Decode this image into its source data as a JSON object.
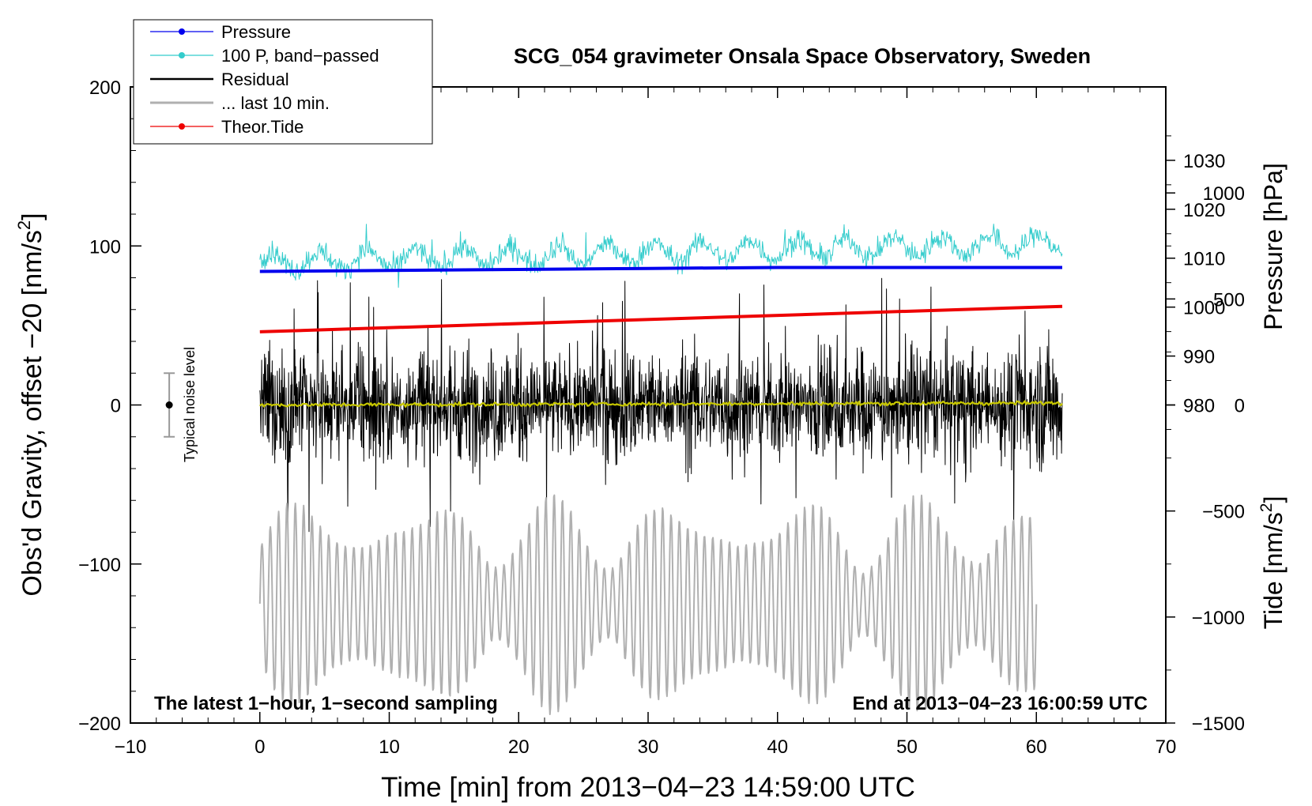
{
  "chart_data": {
    "type": "line",
    "title": "SCG_054 gravimeter Onsala Space Observatory, Sweden",
    "xlabel": "Time [min] from 2013−04−23 14:59:00 UTC",
    "ylabel_left_main": "Obs'd Gravity, offset −20 [nm/s",
    "ylabel_left_sup": "2",
    "ylabel_left_close": "]",
    "ylabel_right_pressure": "Pressure [hPa]",
    "ylabel_right_tide_main": "Tide [nm/s",
    "ylabel_right_tide_sup": "2",
    "ylabel_right_tide_close": "]",
    "xlim": [
      -10,
      70
    ],
    "ylim_left": [
      -200,
      200
    ],
    "x_ticks": [
      -10,
      0,
      10,
      20,
      30,
      40,
      50,
      60,
      70
    ],
    "x_tick_labels": [
      "−10",
      "0",
      "10",
      "20",
      "30",
      "40",
      "50",
      "60",
      "70"
    ],
    "y_left_ticks": [
      -200,
      -100,
      0,
      100,
      200
    ],
    "y_left_tick_labels": [
      "−200",
      "−100",
      "0",
      "100",
      "200"
    ],
    "y_right_pressure_ticks": [
      980,
      990,
      1000,
      1010,
      1020,
      1030
    ],
    "y_right_pressure_range": [
      915,
      1045
    ],
    "y_right_tide_ticks": [
      -1500,
      -1000,
      -500,
      0,
      500,
      1000
    ],
    "y_right_tide_tick_labels": [
      "−1500",
      "−1000",
      "−500",
      "0",
      "500",
      "1000"
    ],
    "y_right_tide_range": [
      -1500,
      1500
    ],
    "grid": false,
    "legend_position": "top-left",
    "legend": [
      {
        "label": "Pressure",
        "color": "#0000ee",
        "marker": true
      },
      {
        "label": "100 P, band−passed",
        "color": "#33cccc",
        "marker": true
      },
      {
        "label": "Residual",
        "color": "#000000",
        "marker": false
      },
      {
        "label": "... last 10 min.",
        "color": "#b0b0b0",
        "marker": false
      },
      {
        "label": "Theor.Tide",
        "color": "#ee0000",
        "marker": true
      }
    ],
    "annotation_left": "The latest 1−hour, 1−second sampling",
    "annotation_right": "End at 2013−04−23 16:00:59 UTC",
    "noise_label": "Typical noise level",
    "noise_bar": {
      "x": -7,
      "center": 0,
      "half_range": 20
    },
    "series": [
      {
        "name": "Pressure",
        "color": "#0000ee",
        "axis": "pressure",
        "x": [
          0,
          10,
          20,
          30,
          40,
          50,
          62
        ],
        "y": [
          1007.3,
          1007.5,
          1007.7,
          1007.9,
          1008.1,
          1008.1,
          1008.1
        ]
      },
      {
        "name": "100 P, band-passed",
        "color": "#33cccc",
        "axis": "left",
        "x_start": 0,
        "x_end": 62,
        "center": 100,
        "amplitude": 12
      },
      {
        "name": "Residual",
        "color": "#000000",
        "axis": "left",
        "x_start": 0,
        "x_end": 62,
        "center": 0,
        "amplitude": 45
      },
      {
        "name": "Residual smoothed",
        "color": "#c8c800",
        "axis": "left",
        "x_start": 0,
        "x_end": 62,
        "center": 0,
        "amplitude": 2
      },
      {
        "name": "Theor.Tide",
        "color": "#ee0000",
        "axis": "tide",
        "x": [
          0,
          62
        ],
        "y": [
          345,
          465
        ]
      },
      {
        "name": "... last 10 min.",
        "color": "#b0b0b0",
        "axis": "left",
        "x_start": 0,
        "x_end": 60,
        "center": -125,
        "amplitude": 50
      }
    ]
  }
}
